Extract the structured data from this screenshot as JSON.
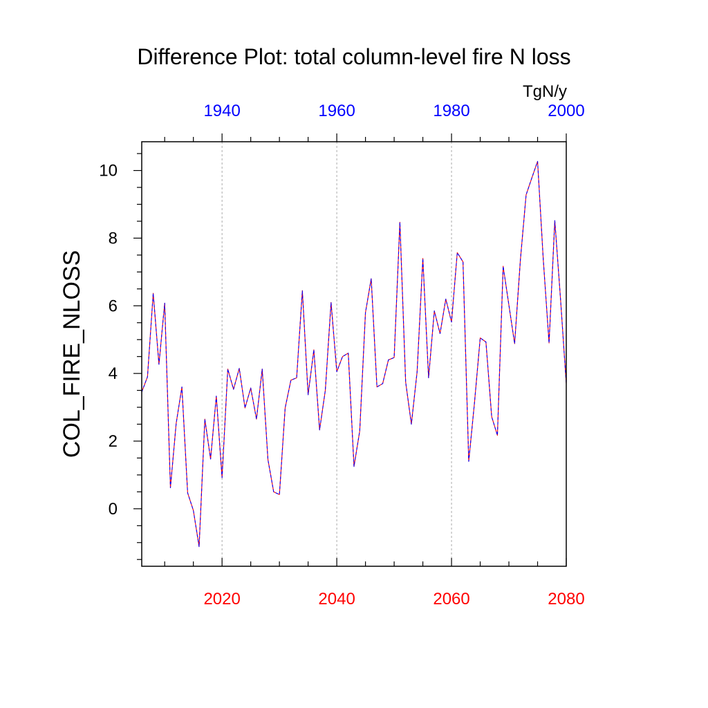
{
  "chart_data": {
    "type": "line",
    "title": "Difference Plot: total column-level fire N loss",
    "units": "TgN/y",
    "ylabel": "COL_FIRE_NLOSS",
    "xlabel": "",
    "bottom_axis": {
      "range": [
        2006,
        2080
      ],
      "ticks": [
        2020,
        2040,
        2060,
        2080
      ],
      "color": "#ff0000"
    },
    "top_axis": {
      "range": [
        1926,
        2000
      ],
      "ticks": [
        1940,
        1960,
        1980,
        2000
      ],
      "color": "#0000ff"
    },
    "ylim": [
      -1.7,
      10.85
    ],
    "yticks": [
      0,
      2,
      4,
      6,
      8,
      10
    ],
    "vertical_gridlines": [
      2020,
      2040,
      2060
    ],
    "colors": {
      "case1": "#ff0000",
      "case2": "#0000ff"
    },
    "x": [
      2006,
      2007,
      2008,
      2009,
      2010,
      2011,
      2012,
      2013,
      2014,
      2015,
      2016,
      2017,
      2018,
      2019,
      2020,
      2021,
      2022,
      2023,
      2024,
      2025,
      2026,
      2027,
      2028,
      2029,
      2030,
      2031,
      2032,
      2033,
      2034,
      2035,
      2036,
      2037,
      2038,
      2039,
      2040,
      2041,
      2042,
      2043,
      2044,
      2045,
      2046,
      2047,
      2048,
      2049,
      2050,
      2051,
      2052,
      2053,
      2054,
      2055,
      2056,
      2057,
      2058,
      2059,
      2060,
      2061,
      2062,
      2063,
      2064,
      2065,
      2066,
      2067,
      2068,
      2069,
      2070,
      2071,
      2072,
      2073,
      2074,
      2075,
      2076,
      2077,
      2078,
      2079,
      2080
    ],
    "series": [
      {
        "values": [
          3.45,
          3.9,
          6.37,
          4.27,
          6.08,
          0.62,
          2.52,
          3.6,
          0.47,
          -0.05,
          -1.12,
          2.65,
          1.47,
          3.33,
          0.92,
          4.13,
          3.53,
          4.15,
          2.98,
          3.57,
          2.65,
          4.13,
          1.45,
          0.5,
          0.42,
          2.98,
          3.8,
          3.87,
          6.45,
          3.37,
          4.7,
          2.33,
          3.5,
          6.1,
          4.05,
          4.5,
          4.6,
          1.25,
          2.3,
          5.8,
          6.8,
          3.6,
          3.7,
          4.4,
          4.47,
          8.47,
          3.75,
          2.5,
          4.05,
          7.4,
          3.87,
          5.85,
          5.18,
          6.2,
          5.52,
          7.57,
          7.3,
          1.4,
          3.13,
          5.05,
          4.93,
          2.72,
          2.17,
          7.17,
          6.02,
          4.88,
          7.35,
          9.28,
          9.78,
          10.27,
          7.35,
          4.9,
          8.52,
          6.2,
          3.7
        ]
      },
      {
        "values": [
          3.45,
          3.9,
          6.37,
          4.27,
          6.08,
          0.62,
          2.52,
          3.6,
          0.47,
          -0.05,
          -1.12,
          2.65,
          1.47,
          3.33,
          0.92,
          4.13,
          3.53,
          4.15,
          2.98,
          3.57,
          2.65,
          4.13,
          1.45,
          0.5,
          0.42,
          2.98,
          3.8,
          3.87,
          6.45,
          3.37,
          4.7,
          2.33,
          3.5,
          6.1,
          4.05,
          4.5,
          4.6,
          1.25,
          2.3,
          5.8,
          6.8,
          3.6,
          3.7,
          4.4,
          4.47,
          8.47,
          3.75,
          2.5,
          4.05,
          7.4,
          3.87,
          5.85,
          5.18,
          6.2,
          5.52,
          7.57,
          7.3,
          1.4,
          3.13,
          5.05,
          4.93,
          2.72,
          2.17,
          7.17,
          6.02,
          4.88,
          7.35,
          9.28,
          9.78,
          10.27,
          7.35,
          4.9,
          8.52,
          6.2,
          3.7
        ]
      }
    ]
  }
}
